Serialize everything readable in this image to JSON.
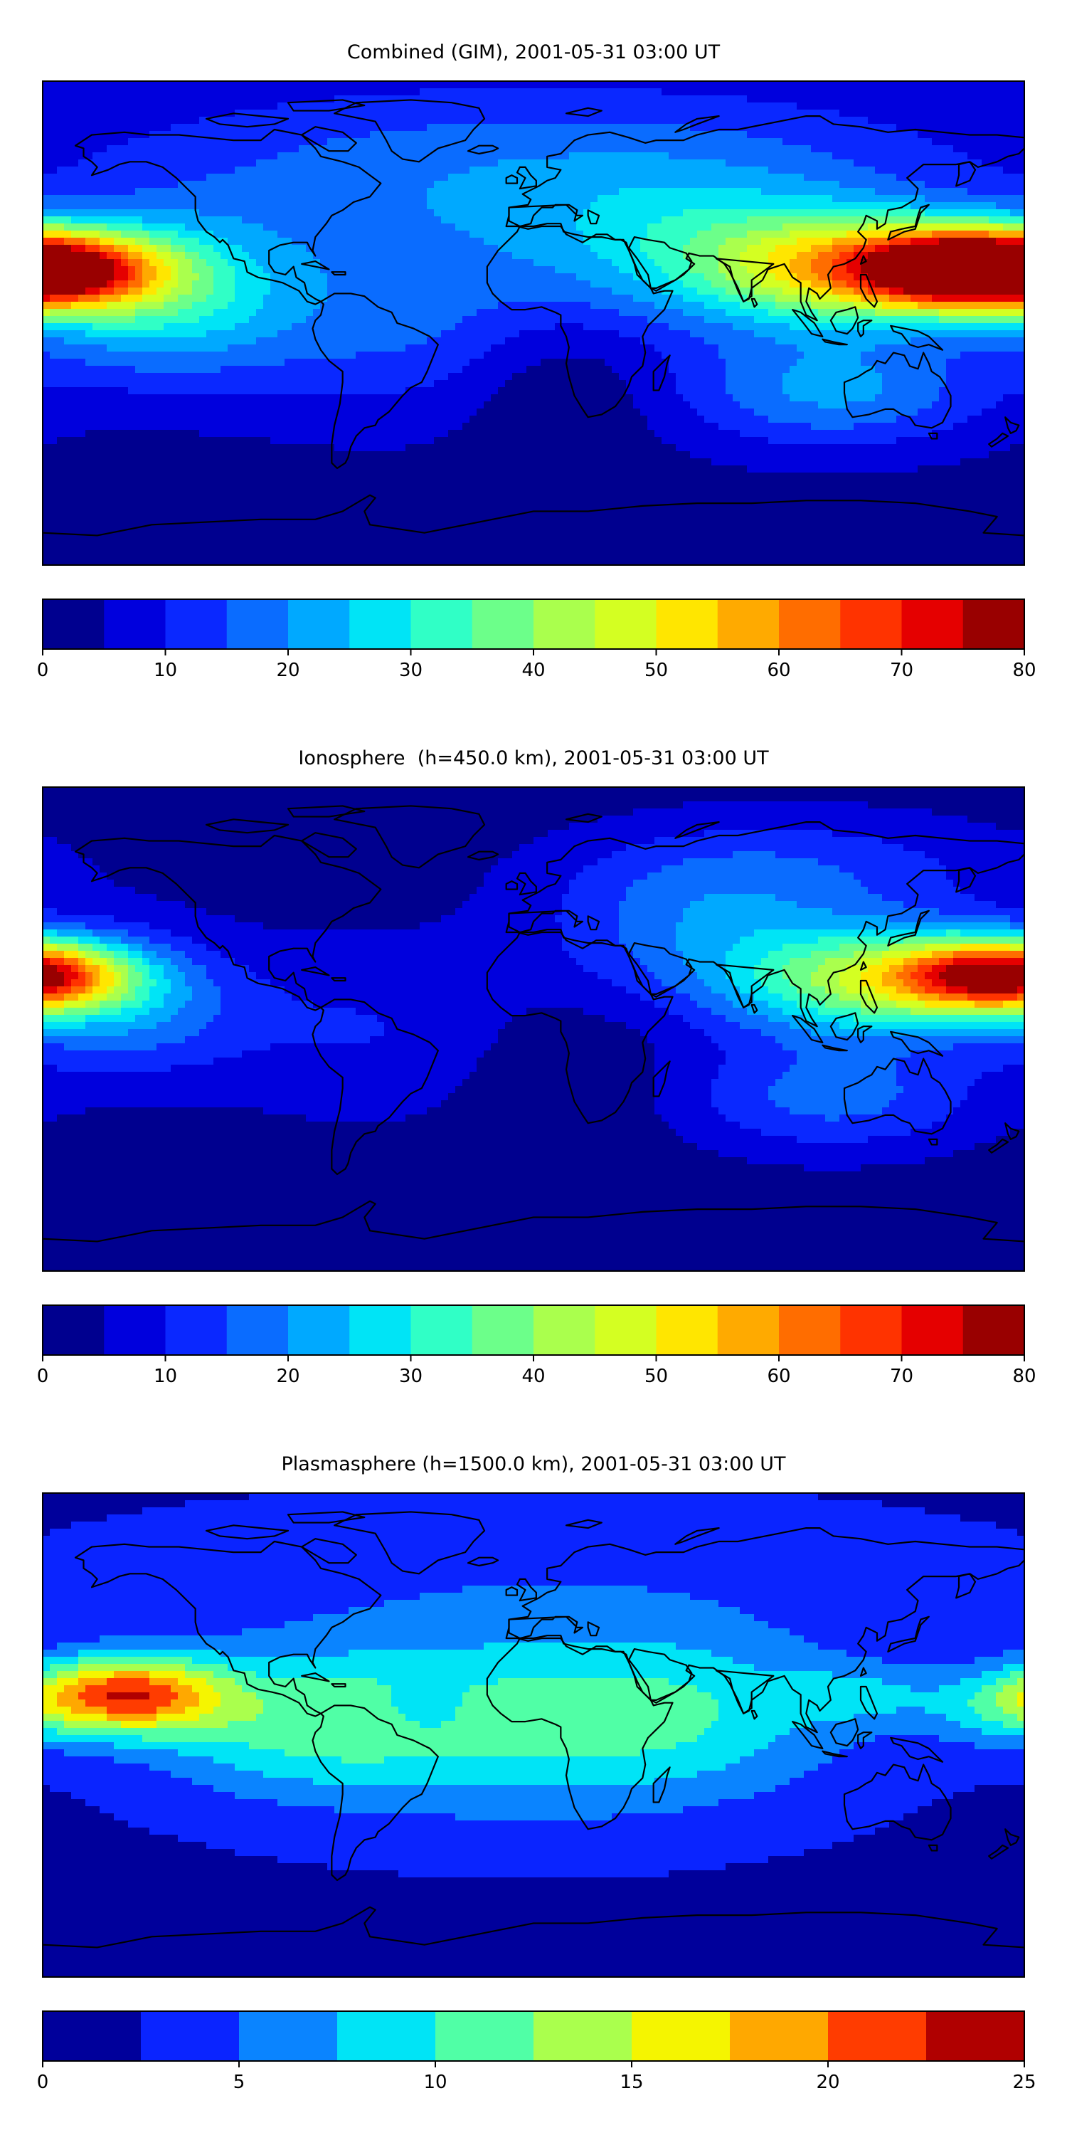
{
  "colors": {
    "jet": [
      "#00008f",
      "#0000dd",
      "#0a28ff",
      "#0a6cff",
      "#00a9ff",
      "#00e4f6",
      "#30ffc6",
      "#6cff8a",
      "#aaff4d",
      "#d4ff22",
      "#ffe600",
      "#ffaa00",
      "#ff6d00",
      "#ff3300",
      "#e50000",
      "#990000"
    ],
    "jet10": [
      "#00009b",
      "#0a24ff",
      "#0a84ff",
      "#00e4f6",
      "#50ffa6",
      "#aaff4d",
      "#f5f500",
      "#ffa800",
      "#ff3c00",
      "#b00000"
    ],
    "land_outline": "#000000"
  },
  "panels": [
    {
      "title": "Combined (GIM), 2001-05-31 03:00 UT",
      "colorbar": {
        "min": 0,
        "max": 80,
        "step": 5,
        "ticks": [
          "0",
          "10",
          "20",
          "30",
          "40",
          "50",
          "60",
          "70",
          "80"
        ],
        "tick_values": [
          0,
          10,
          20,
          30,
          40,
          50,
          60,
          70,
          80
        ]
      },
      "field": {
        "base": 3,
        "terms": [
          {
            "lon": 120,
            "lat": 20,
            "amp": 45,
            "sx": 36,
            "sy": 14
          },
          {
            "lon": 152,
            "lat": 20,
            "amp": 35,
            "sx": 22,
            "sy": 10
          },
          {
            "lon": -178,
            "lat": 20,
            "amp": 65,
            "sx": 28,
            "sy": 10
          },
          {
            "lon": -140,
            "lat": 10,
            "amp": 25,
            "sx": 35,
            "sy": 20
          },
          {
            "lon": 60,
            "lat": 25,
            "amp": 16,
            "sx": 42,
            "sy": 20
          },
          {
            "lon": -50,
            "lat": 0,
            "amp": 12,
            "sx": 50,
            "sy": 25
          },
          {
            "lon": 0,
            "lat": 55,
            "amp": 16,
            "sx": 120,
            "sy": 25
          },
          {
            "lon": 110,
            "lat": -25,
            "amp": 18,
            "sx": 40,
            "sy": 15
          },
          {
            "lon": 10,
            "lat": -20,
            "amp": -6,
            "sx": 25,
            "sy": 20
          }
        ]
      }
    },
    {
      "title": "Ionosphere  (h=450.0 km), 2001-05-31 03:00 UT",
      "colorbar": {
        "min": 0,
        "max": 80,
        "step": 5,
        "ticks": [
          "0",
          "10",
          "20",
          "30",
          "40",
          "50",
          "60",
          "70",
          "80"
        ],
        "tick_values": [
          0,
          10,
          20,
          30,
          40,
          50,
          60,
          70,
          80
        ]
      },
      "field": {
        "base": 2,
        "terms": [
          {
            "lon": 125,
            "lat": 18,
            "amp": 38,
            "sx": 36,
            "sy": 14
          },
          {
            "lon": 155,
            "lat": 20,
            "amp": 25,
            "sx": 20,
            "sy": 10
          },
          {
            "lon": -178,
            "lat": 20,
            "amp": 48,
            "sx": 22,
            "sy": 9
          },
          {
            "lon": -150,
            "lat": 10,
            "amp": 18,
            "sx": 30,
            "sy": 18
          },
          {
            "lon": 60,
            "lat": 35,
            "amp": 14,
            "sx": 40,
            "sy": 20
          },
          {
            "lon": -60,
            "lat": 0,
            "amp": 8,
            "sx": 45,
            "sy": 25
          },
          {
            "lon": 100,
            "lat": 60,
            "amp": 10,
            "sx": 60,
            "sy": 15
          },
          {
            "lon": 110,
            "lat": -25,
            "amp": 15,
            "sx": 40,
            "sy": 15
          },
          {
            "lon": 10,
            "lat": -15,
            "amp": -4,
            "sx": 25,
            "sy": 20
          }
        ]
      }
    },
    {
      "title": "Plasmasphere (h=1500.0 km), 2001-05-31 03:00 UT",
      "colorbar": {
        "min": 0,
        "max": 25,
        "step": 2.5,
        "ticks": [
          "0",
          "5",
          "10",
          "15",
          "20",
          "25"
        ],
        "tick_values": [
          0,
          5,
          10,
          15,
          20,
          25
        ]
      },
      "field": {
        "base": 2,
        "terms": [
          {
            "lon": -150,
            "lat": 15,
            "amp": 18,
            "sx": 25,
            "sy": 10
          },
          {
            "lon": -90,
            "lat": 5,
            "amp": 6,
            "sx": 40,
            "sy": 18
          },
          {
            "lon": 0,
            "lat": 5,
            "amp": 8,
            "sx": 70,
            "sy": 25
          },
          {
            "lon": -40,
            "lat": 10,
            "amp": -3,
            "sx": 10,
            "sy": 6
          },
          {
            "lon": 120,
            "lat": 15,
            "amp": 4,
            "sx": 20,
            "sy": 8
          },
          {
            "lon": 60,
            "lat": 10,
            "amp": 3,
            "sx": 40,
            "sy": 20
          },
          {
            "lon": 0,
            "lat": 60,
            "amp": 2,
            "sx": 120,
            "sy": 20
          },
          {
            "lon": 170,
            "lat": 10,
            "amp": 5,
            "sx": 20,
            "sy": 10
          }
        ]
      }
    }
  ]
}
